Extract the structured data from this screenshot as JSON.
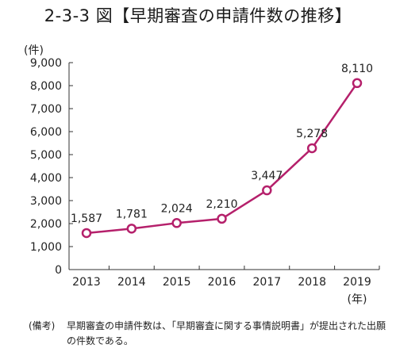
{
  "title": "2-3-3 図【早期審査の申請件数の推移】",
  "note": {
    "tag": "(備考)",
    "text": "早期審査の申請件数は、「早期審査に関する事情説明書」が提出された出願の件数である。"
  },
  "chart_data": {
    "type": "line",
    "title": "2-3-3 図【早期審査の申請件数の推移】",
    "ylabel": "(件)",
    "xlabel": "(年)",
    "categories": [
      "2013",
      "2014",
      "2015",
      "2016",
      "2017",
      "2018",
      "2019"
    ],
    "values": [
      1587,
      1781,
      2024,
      2210,
      3447,
      5278,
      8110
    ],
    "value_labels": [
      "1,587",
      "1,781",
      "2,024",
      "2,210",
      "3,447",
      "5,278",
      "8,110"
    ],
    "ylim": [
      0,
      9000
    ],
    "yticks": [
      0,
      1000,
      2000,
      3000,
      4000,
      5000,
      6000,
      7000,
      8000,
      9000
    ],
    "ytick_labels": [
      "0",
      "1,000",
      "2,000",
      "3,000",
      "4,000",
      "5,000",
      "6,000",
      "7,000",
      "8,000",
      "9,000"
    ],
    "grid": false,
    "line_color": "#b5206b",
    "marker_fill": "#ffffff"
  }
}
